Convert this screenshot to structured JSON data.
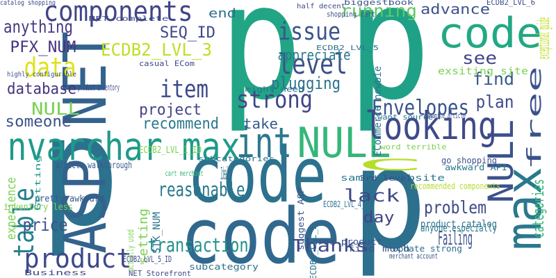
{
  "words": [
    "p",
    "p",
    "p",
    "p",
    "code",
    "code",
    "code",
    "ASP NET",
    "nvarchar max",
    "int",
    "NULL",
    "max",
    "NULL",
    "looking",
    "components",
    "level",
    "issue",
    "item",
    "data",
    "anything",
    "PFX_NUM",
    "SEQ_ID",
    "ECDB2_LVL_3",
    "end",
    "appreciate",
    "running",
    "advance",
    "see",
    "find",
    "plan",
    "strong",
    "plugging",
    "database",
    "NULL",
    "project",
    "someone",
    "recommend",
    "take",
    "Envelopes",
    "table",
    "experience",
    "price",
    "product",
    "reasonable",
    "transaction",
    "setting",
    "STK_NUM",
    "Thanks",
    "lack",
    "day",
    "Failing",
    "problem",
    "c",
    "Ideally",
    "categories",
    "free",
    "exceptional guide",
    "ECommerce newbie",
    "exsiting site",
    "product catalog",
    "Update strong",
    "inventory less",
    "pretty awkward",
    "article walkthrough",
    "recommended components",
    "sample website",
    "catalog shopping",
    "biggestbook",
    "ECDB2_LVL_6",
    "half decent",
    "shopping cart",
    "casual ECom",
    "ECDB2_LVL_1_ID",
    "ECDB2_LVL_5",
    "ECDB2_LVL_4_ID",
    "subcategories",
    "awkward API",
    "go shopping",
    "want source",
    "dynamite article",
    "word terrible",
    "might need",
    "product inventory",
    "highly configurable",
    "NET complete",
    "anyone especially",
    "large product",
    "find much",
    "merchant account",
    "NET Storefront",
    "Business",
    "cart merchant",
    "Getting",
    "actually used",
    "suggest ASP",
    "ECDB2_LVL_2",
    "ECDB2_LVL_5_ID",
    "subcategory",
    "3rd level"
  ]
}
